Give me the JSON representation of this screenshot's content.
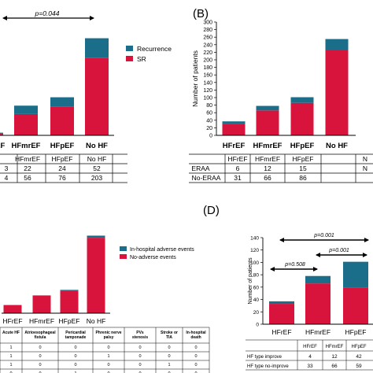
{
  "colors": {
    "bar_bottom": "#d8143c",
    "bar_top": "#1b6e8a",
    "arrow": "#000000"
  },
  "chart_data": [
    {
      "panel": "A",
      "type": "bar",
      "stacked": true,
      "categories": [
        "HFrEF",
        "HFmrEF",
        "HFpEF",
        "No HF"
      ],
      "series": [
        {
          "name": "SR",
          "values": [
            4,
            56,
            76,
            203
          ]
        },
        {
          "name": "Recurrence",
          "values": [
            3,
            22,
            24,
            52
          ]
        }
      ],
      "ylim": [
        0,
        260
      ],
      "legend_position": "top-right",
      "annotations": [
        "p=0.044"
      ],
      "table": {
        "columns": [
          "HFrEF",
          "HFmrEF",
          "HFpEF",
          "No HF"
        ],
        "rows": [
          {
            "label": "Recurrence",
            "values": [
              "3",
              "22",
              "24",
              "52"
            ]
          },
          {
            "label": "SR",
            "values": [
              "4",
              "56",
              "76",
              "203"
            ]
          }
        ]
      }
    },
    {
      "panel": "B",
      "label": "(B)",
      "type": "bar",
      "stacked": true,
      "categories": [
        "HFrEF",
        "HFmrEF",
        "HFpEF",
        "No HF"
      ],
      "series": [
        {
          "name": "No-ERAA",
          "values": [
            31,
            66,
            86,
            226
          ]
        },
        {
          "name": "ERAA",
          "values": [
            6,
            12,
            15,
            29
          ]
        }
      ],
      "ylabel": "Number of patients",
      "ylim": [
        0,
        300
      ],
      "yticks": [
        0,
        20,
        40,
        60,
        80,
        100,
        120,
        140,
        160,
        180,
        200,
        220,
        240,
        260,
        280,
        300
      ],
      "table": {
        "columns": [
          "HFrEF",
          "HFmrEF",
          "HFpEF",
          "N"
        ],
        "rows": [
          {
            "label": "ERAA",
            "values": [
              "6",
              "12",
              "15",
              "N"
            ]
          },
          {
            "label": "No-ERAA",
            "values": [
              "31",
              "66",
              "86",
              ""
            ]
          }
        ]
      }
    },
    {
      "panel": "C",
      "type": "bar",
      "stacked": true,
      "categories": [
        "HFrEF",
        "HFmrEF",
        "HFpEF",
        "No HF"
      ],
      "series": [
        {
          "name": "No-adverse events",
          "values": [
            27,
            58,
            75,
            249
          ]
        },
        {
          "name": "In-hospital adverse events",
          "values": [
            0,
            1,
            2,
            7
          ]
        }
      ],
      "ylim": [
        0,
        270
      ],
      "legend_position": "top-right",
      "table": {
        "columns": [
          "Acute HF",
          "Atrioesophageal fistula",
          "Pericardial tamponade",
          "Phrenic nerve palsy",
          "PVs stenosis",
          "Stroke or TIA",
          "In-hospital death"
        ],
        "rows": [
          {
            "values": [
              "1",
              "0",
              "0",
              "0",
              "0",
              "0",
              "0"
            ]
          },
          {
            "values": [
              "1",
              "0",
              "0",
              "1",
              "0",
              "0",
              "0"
            ]
          },
          {
            "values": [
              "1",
              "0",
              "0",
              "0",
              "0",
              "1",
              "0"
            ]
          },
          {
            "values": [
              "0",
              "0",
              "1",
              "0",
              "0",
              "0",
              "0"
            ]
          }
        ]
      }
    },
    {
      "panel": "D",
      "label": "(D)",
      "type": "bar",
      "stacked": true,
      "categories": [
        "HFrEF",
        "HFmrEF",
        "HFpEF"
      ],
      "series": [
        {
          "name": "HF type no-improve",
          "values": [
            33,
            66,
            59
          ]
        },
        {
          "name": "HF type improve",
          "values": [
            4,
            12,
            42
          ]
        }
      ],
      "ylabel": "Number of patients",
      "ylim": [
        0,
        140
      ],
      "yticks": [
        0,
        20,
        40,
        60,
        80,
        100,
        120,
        140
      ],
      "annotations": [
        "p=0.001",
        "p=0.508",
        "p=0.001"
      ],
      "table": {
        "columns": [
          "HFrEF",
          "HFmrEF",
          "HFpEF"
        ],
        "rows": [
          {
            "label": "HF type improve",
            "values": [
              "4",
              "12",
              "42"
            ]
          },
          {
            "label": "HF type no-improve",
            "values": [
              "33",
              "66",
              "59"
            ]
          }
        ]
      }
    }
  ]
}
